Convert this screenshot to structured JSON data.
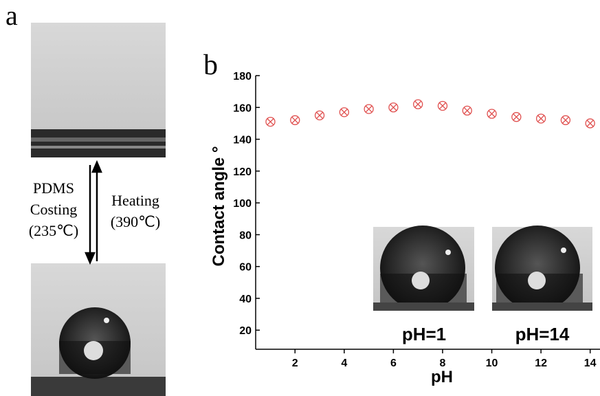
{
  "panel_a": {
    "label": "a",
    "left_text": [
      "PDMS",
      "Costing",
      "(235℃)"
    ],
    "right_text": [
      "Heating",
      "(390℃)"
    ]
  },
  "chart_data": {
    "type": "scatter",
    "panel_label": "b",
    "x_label": "pH",
    "y_label": "Contact angle °",
    "x": [
      1,
      2,
      3,
      4,
      5,
      6,
      7,
      8,
      9,
      10,
      11,
      12,
      13,
      14
    ],
    "series": [
      {
        "name": null,
        "color": "#e0504f",
        "values": [
          151,
          152,
          155,
          157,
          159,
          160,
          162,
          161,
          158,
          156,
          154,
          153,
          152,
          150
        ]
      }
    ],
    "xlim": [
      0.4,
      14.4
    ],
    "xticks": [
      2,
      4,
      6,
      8,
      10,
      12,
      14
    ],
    "ylim": [
      8,
      180
    ],
    "yticks": [
      20,
      40,
      60,
      80,
      100,
      120,
      140,
      160,
      180
    ],
    "inset_labels": [
      "pH=1",
      "pH=14"
    ]
  }
}
